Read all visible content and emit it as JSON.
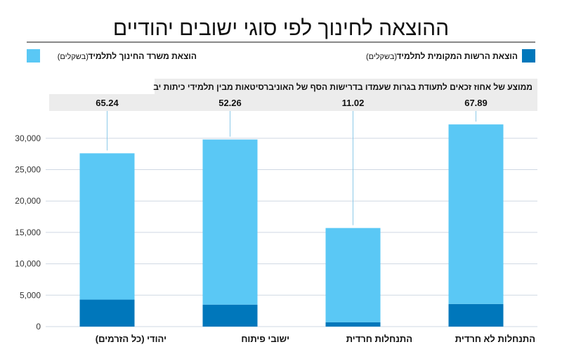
{
  "chart_data": {
    "type": "bar",
    "stacked": true,
    "title": "ההוצאה לחינוך לפי סוגי ישובים יהודיים",
    "categories": [
      "יהודי (כל הזרמים)",
      "ישובי פיתוח",
      "התנחלות חרדית",
      "התנחלות לא חרדית"
    ],
    "series": [
      {
        "name": "הוצאת הרשות המקומית לתלמיד",
        "name_suffix": "(בשקלים)",
        "color": "#0077bb",
        "values": [
          4300,
          3500,
          700,
          3600
        ]
      },
      {
        "name": "הוצאת משרד החינוך לתלמיד",
        "name_suffix": "(בשקלים)",
        "color": "#5ac8f5",
        "values": [
          23300,
          26300,
          15000,
          28600
        ]
      }
    ],
    "secondary": {
      "label": "ממוצע של אחוז זכאים לתעודת בגרות שעמדו בדרישות הסף של האוניברסיטאות מבין תלמידי כיתות יב",
      "values": [
        "65.24",
        "52.26",
        "11.02",
        "67.89"
      ]
    },
    "y_ticks": [
      "30,000",
      "25,000",
      "20,000",
      "15,000",
      "10,000",
      "5,000",
      "0"
    ],
    "y_tick_values": [
      30000,
      25000,
      20000,
      15000,
      10000,
      5000,
      0
    ],
    "ylim": [
      0,
      33000
    ],
    "grid": true,
    "legend_placement": "top"
  }
}
